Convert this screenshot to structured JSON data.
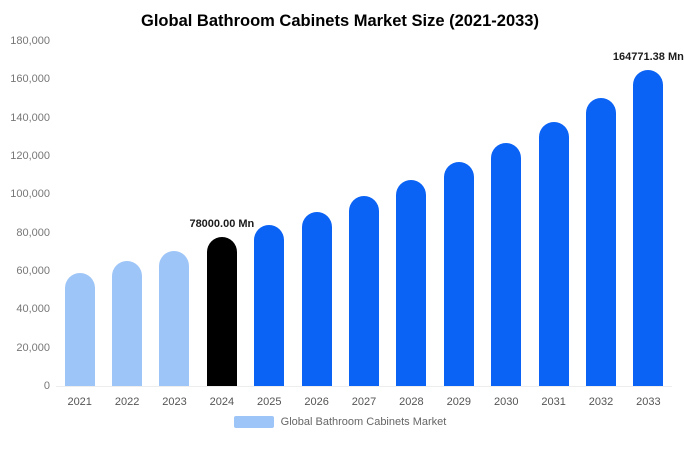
{
  "chart_data": {
    "type": "bar",
    "title": "Global Bathroom Cabinets Market Size (2021-2033)",
    "categories": [
      "2021",
      "2022",
      "2023",
      "2024",
      "2025",
      "2026",
      "2027",
      "2028",
      "2029",
      "2030",
      "2031",
      "2032",
      "2033"
    ],
    "values": [
      59000,
      65000,
      70500,
      78000,
      84000,
      91000,
      99000,
      107500,
      117000,
      127000,
      138000,
      150500,
      164771.38
    ],
    "bar_colors": [
      "#9ec5f8",
      "#9ec5f8",
      "#9ec5f8",
      "#000000",
      "#0b63f5",
      "#0b63f5",
      "#0b63f5",
      "#0b63f5",
      "#0b63f5",
      "#0b63f5",
      "#0b63f5",
      "#0b63f5",
      "#0b63f5"
    ],
    "value_labels": [
      null,
      null,
      null,
      "78000.00 Mn",
      null,
      null,
      null,
      null,
      null,
      null,
      null,
      null,
      "164771.38 Mn"
    ],
    "xlabel": "",
    "ylabel": "",
    "ylim": [
      0,
      180000
    ],
    "y_ticks": [
      "180,000",
      "160,000",
      "140,000",
      "120,000",
      "100,000",
      "80,000",
      "60,000",
      "40,000",
      "20,000",
      "0"
    ],
    "grid": false,
    "legend": {
      "position": "bottom",
      "label": "Global Bathroom Cabinets Market",
      "swatch_color": "#9ec5f8"
    },
    "colors": {
      "historical": "#9ec5f8",
      "base_year": "#000000",
      "forecast": "#0b63f5",
      "label_text": "#1b1b1b",
      "axis_text": "#777777"
    }
  }
}
